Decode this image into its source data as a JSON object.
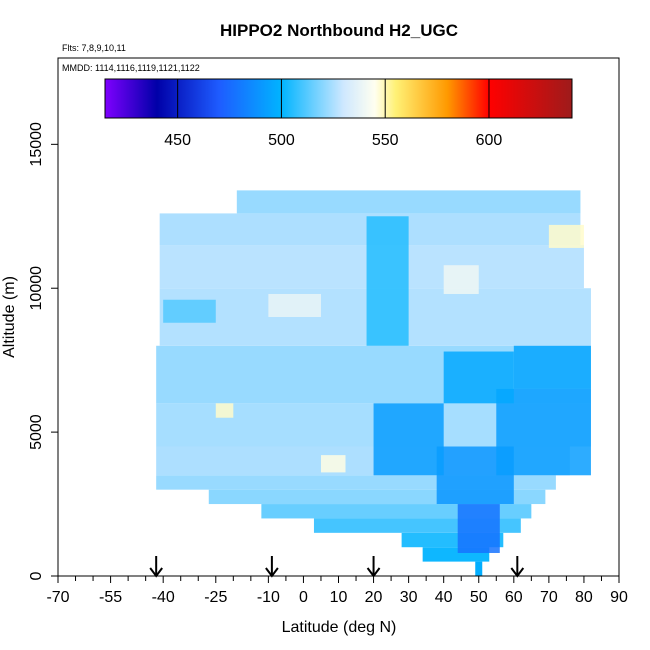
{
  "chart_data": {
    "type": "heatmap",
    "title": "HIPPO2 Northbound H2_UGC",
    "flights_note": "Flts: 7,8,9,10,11",
    "dates_note": "MMDD: 1114,1116,1119,1121,1122",
    "xlabel": "Latitude (deg N)",
    "ylabel": "Altitude (m)",
    "xlim": [
      -70,
      90
    ],
    "ylim": [
      0,
      18000
    ],
    "x_tick_labels": [
      "-70",
      "-55",
      "-40",
      "-25",
      "-10",
      "0",
      "10",
      "20",
      "30",
      "40",
      "50",
      "60",
      "70",
      "80",
      "90"
    ],
    "x_tick_values": [
      -70,
      -55,
      -40,
      -25,
      -10,
      0,
      10,
      20,
      30,
      40,
      50,
      60,
      70,
      80,
      90
    ],
    "x_minor_ticks": [
      -65,
      -60,
      -50,
      -45,
      -35,
      -30,
      -20,
      -15,
      -5,
      5,
      15,
      25,
      35,
      45,
      55,
      65,
      75,
      85
    ],
    "y_tick_labels": [
      "0",
      "5000",
      "10000",
      "15000"
    ],
    "y_tick_values": [
      0,
      5000,
      10000,
      15000
    ],
    "colorbar": {
      "range": [
        415,
        640
      ],
      "tick_labels": [
        "450",
        "500",
        "550",
        "600"
      ],
      "tick_values": [
        450,
        500,
        550,
        600
      ],
      "stops": [
        {
          "v": 415,
          "c": "#7f00ff"
        },
        {
          "v": 440,
          "c": "#0000a8"
        },
        {
          "v": 470,
          "c": "#1e5cff"
        },
        {
          "v": 500,
          "c": "#00b4ff"
        },
        {
          "v": 530,
          "c": "#cfe8ff"
        },
        {
          "v": 545,
          "c": "#fffff0"
        },
        {
          "v": 555,
          "c": "#fff176"
        },
        {
          "v": 580,
          "c": "#ff9900"
        },
        {
          "v": 600,
          "c": "#ff0000"
        },
        {
          "v": 640,
          "c": "#9e1b1b"
        }
      ]
    },
    "profile_markers_lat": [
      -42,
      -9,
      20,
      61
    ],
    "bands": [
      {
        "alt": [
          0,
          500
        ],
        "lat": [
          49,
          51
        ],
        "v": 498
      },
      {
        "alt": [
          500,
          1000
        ],
        "lat": [
          34,
          53
        ],
        "v": 502
      },
      {
        "alt": [
          1000,
          1500
        ],
        "lat": [
          28,
          57
        ],
        "v": 505
      },
      {
        "alt": [
          1500,
          2000
        ],
        "lat": [
          3,
          62
        ],
        "v": 510
      },
      {
        "alt": [
          2000,
          2500
        ],
        "lat": [
          -12,
          65
        ],
        "v": 515
      },
      {
        "alt": [
          2500,
          3000
        ],
        "lat": [
          -27,
          69
        ],
        "v": 520
      },
      {
        "alt": [
          3000,
          3500
        ],
        "lat": [
          -42,
          72
        ],
        "v": 522
      },
      {
        "alt": [
          3500,
          4500
        ],
        "lat": [
          -42,
          76
        ],
        "v": 525
      },
      {
        "alt": [
          4500,
          6000
        ],
        "lat": [
          -42,
          82
        ],
        "v": 524
      },
      {
        "alt": [
          6000,
          8000
        ],
        "lat": [
          -42,
          82
        ],
        "v": 522
      },
      {
        "alt": [
          8000,
          10000
        ],
        "lat": [
          -41,
          82
        ],
        "v": 526
      },
      {
        "alt": [
          10000,
          11500
        ],
        "lat": [
          -41,
          80
        ],
        "v": 527
      },
      {
        "alt": [
          11500,
          12600
        ],
        "lat": [
          -41,
          79
        ],
        "v": 525
      },
      {
        "alt": [
          12600,
          13400
        ],
        "lat": [
          -19,
          79
        ],
        "v": 522
      }
    ],
    "blobs": [
      {
        "lat": [
          44,
          56
        ],
        "alt": [
          800,
          2500
        ],
        "v": 478
      },
      {
        "lat": [
          38,
          60
        ],
        "alt": [
          2500,
          4500
        ],
        "v": 490
      },
      {
        "lat": [
          20,
          40
        ],
        "alt": [
          3500,
          6000
        ],
        "v": 492
      },
      {
        "lat": [
          55,
          82
        ],
        "alt": [
          3500,
          6500
        ],
        "v": 492
      },
      {
        "lat": [
          60,
          82
        ],
        "alt": [
          6500,
          8000
        ],
        "v": 495
      },
      {
        "lat": [
          40,
          60
        ],
        "alt": [
          6000,
          7800
        ],
        "v": 496
      },
      {
        "lat": [
          18,
          30
        ],
        "alt": [
          8000,
          12500
        ],
        "v": 505
      },
      {
        "lat": [
          -40,
          -25
        ],
        "alt": [
          8800,
          9600
        ],
        "v": 512
      },
      {
        "lat": [
          -10,
          5
        ],
        "alt": [
          9000,
          9800
        ],
        "v": 538
      },
      {
        "lat": [
          -25,
          -20
        ],
        "alt": [
          5500,
          6000
        ],
        "v": 548
      },
      {
        "lat": [
          5,
          12
        ],
        "alt": [
          3600,
          4200
        ],
        "v": 546
      },
      {
        "lat": [
          70,
          80
        ],
        "alt": [
          11400,
          12200
        ],
        "v": 548
      },
      {
        "lat": [
          40,
          50
        ],
        "alt": [
          9800,
          10800
        ],
        "v": 540
      }
    ]
  }
}
